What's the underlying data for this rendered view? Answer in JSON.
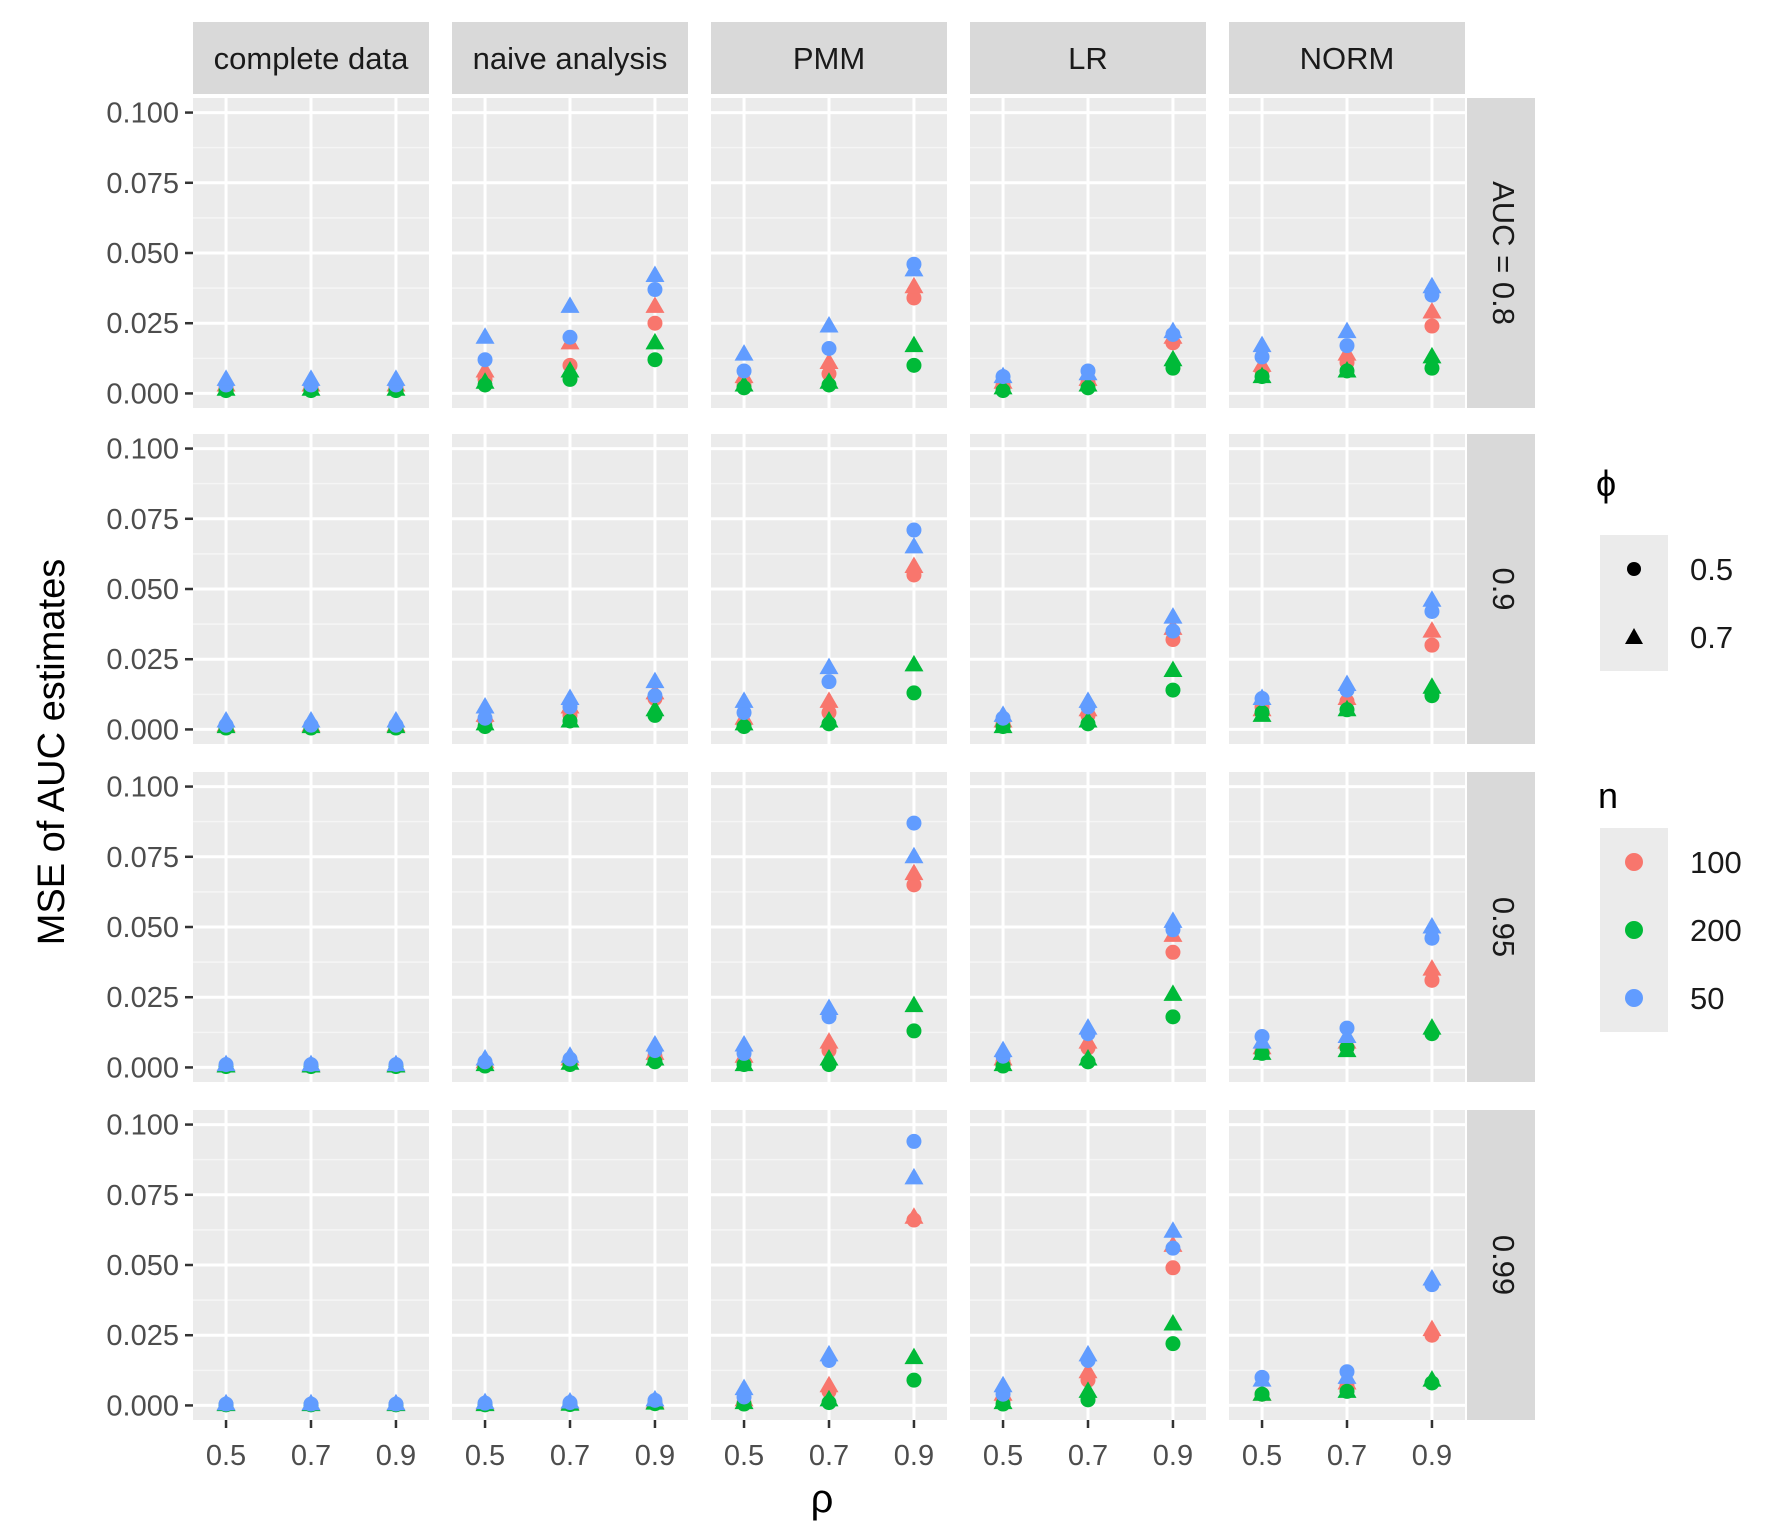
{
  "chart_data": {
    "type": "scatter",
    "layout": "facet-grid",
    "ylabel": "MSE of AUC estimates",
    "xlabel": "ρ",
    "x_ticks": [
      "0.5",
      "0.7",
      "0.9"
    ],
    "x_values": [
      0.5,
      0.7,
      0.9
    ],
    "ylim": [
      0,
      0.1
    ],
    "y_ticks": [
      "0.000",
      "0.025",
      "0.050",
      "0.075",
      "0.100"
    ],
    "y_tick_values": [
      0,
      0.025,
      0.05,
      0.075,
      0.1
    ],
    "column_facets": [
      "complete data",
      "naive analysis",
      "PMM",
      "LR",
      "NORM"
    ],
    "row_facets": [
      "AUC = 0.8",
      "0.9",
      "0.95",
      "0.99"
    ],
    "legend_phi": {
      "title": "ϕ",
      "items": [
        {
          "label": "0.5",
          "shape": "circle"
        },
        {
          "label": "0.7",
          "shape": "triangle"
        }
      ]
    },
    "legend_n": {
      "title": "n",
      "items": [
        {
          "label": "100",
          "color": "#F8766D"
        },
        {
          "label": "200",
          "color": "#00BA38"
        },
        {
          "label": "50",
          "color": "#619CFF"
        }
      ]
    },
    "series_order": [
      "100-0.5",
      "100-0.7",
      "200-0.5",
      "200-0.7",
      "50-0.5",
      "50-0.7"
    ],
    "series_meta": {
      "100-0.5": {
        "n": "100",
        "phi": "0.5"
      },
      "100-0.7": {
        "n": "100",
        "phi": "0.7"
      },
      "200-0.5": {
        "n": "200",
        "phi": "0.5"
      },
      "200-0.7": {
        "n": "200",
        "phi": "0.7"
      },
      "50-0.5": {
        "n": "50",
        "phi": "0.5"
      },
      "50-0.7": {
        "n": "50",
        "phi": "0.7"
      }
    },
    "panels": [
      [
        {
          "100-0.5": [
            0.002,
            0.002,
            0.002
          ],
          "100-0.7": [
            0.003,
            0.003,
            0.003
          ],
          "200-0.5": [
            0.001,
            0.001,
            0.001
          ],
          "200-0.7": [
            0.0015,
            0.0015,
            0.0015
          ],
          "50-0.5": [
            0.003,
            0.003,
            0.003
          ],
          "50-0.7": [
            0.005,
            0.005,
            0.005
          ]
        },
        {
          "100-0.5": [
            0.005,
            0.01,
            0.025
          ],
          "100-0.7": [
            0.008,
            0.018,
            0.031
          ],
          "200-0.5": [
            0.003,
            0.005,
            0.012
          ],
          "200-0.7": [
            0.004,
            0.008,
            0.018
          ],
          "50-0.5": [
            0.012,
            0.02,
            0.037
          ],
          "50-0.7": [
            0.02,
            0.031,
            0.042
          ]
        },
        {
          "100-0.5": [
            0.003,
            0.007,
            0.034
          ],
          "100-0.7": [
            0.006,
            0.011,
            0.038
          ],
          "200-0.5": [
            0.002,
            0.003,
            0.01
          ],
          "200-0.7": [
            0.003,
            0.004,
            0.017
          ],
          "50-0.5": [
            0.008,
            0.016,
            0.046
          ],
          "50-0.7": [
            0.014,
            0.024,
            0.044
          ]
        },
        {
          "100-0.5": [
            0.003,
            0.004,
            0.018
          ],
          "100-0.7": [
            0.004,
            0.005,
            0.02
          ],
          "200-0.5": [
            0.001,
            0.002,
            0.009
          ],
          "200-0.7": [
            0.002,
            0.003,
            0.012
          ],
          "50-0.5": [
            0.006,
            0.008,
            0.021
          ],
          "50-0.7": [
            0.006,
            0.007,
            0.022
          ]
        },
        {
          "100-0.5": [
            0.008,
            0.011,
            0.024
          ],
          "100-0.7": [
            0.01,
            0.014,
            0.029
          ],
          "200-0.5": [
            0.006,
            0.008,
            0.009
          ],
          "200-0.7": [
            0.006,
            0.008,
            0.013
          ],
          "50-0.5": [
            0.013,
            0.017,
            0.035
          ],
          "50-0.7": [
            0.017,
            0.022,
            0.038
          ]
        }
      ],
      [
        {
          "100-0.5": [
            0.001,
            0.001,
            0.001
          ],
          "100-0.7": [
            0.0015,
            0.0015,
            0.0015
          ],
          "200-0.5": [
            0.0005,
            0.0005,
            0.0005
          ],
          "200-0.7": [
            0.001,
            0.001,
            0.001
          ],
          "50-0.5": [
            0.0015,
            0.0015,
            0.0015
          ],
          "50-0.7": [
            0.003,
            0.003,
            0.003
          ]
        },
        {
          "100-0.5": [
            0.003,
            0.005,
            0.011
          ],
          "100-0.7": [
            0.005,
            0.008,
            0.013
          ],
          "200-0.5": [
            0.001,
            0.003,
            0.005
          ],
          "200-0.7": [
            0.002,
            0.003,
            0.007
          ],
          "50-0.5": [
            0.004,
            0.008,
            0.012
          ],
          "50-0.7": [
            0.008,
            0.011,
            0.017
          ]
        },
        {
          "100-0.5": [
            0.002,
            0.006,
            0.055
          ],
          "100-0.7": [
            0.004,
            0.01,
            0.058
          ],
          "200-0.5": [
            0.001,
            0.002,
            0.013
          ],
          "200-0.7": [
            0.002,
            0.003,
            0.023
          ],
          "50-0.5": [
            0.006,
            0.017,
            0.071
          ],
          "50-0.7": [
            0.01,
            0.022,
            0.065
          ]
        },
        {
          "100-0.5": [
            0.002,
            0.005,
            0.032
          ],
          "100-0.7": [
            0.003,
            0.007,
            0.036
          ],
          "200-0.5": [
            0.001,
            0.002,
            0.014
          ],
          "200-0.7": [
            0.001,
            0.003,
            0.021
          ],
          "50-0.5": [
            0.004,
            0.008,
            0.035
          ],
          "50-0.7": [
            0.005,
            0.01,
            0.04
          ]
        },
        {
          "100-0.5": [
            0.008,
            0.01,
            0.03
          ],
          "100-0.7": [
            0.007,
            0.011,
            0.035
          ],
          "200-0.5": [
            0.006,
            0.007,
            0.012
          ],
          "200-0.7": [
            0.005,
            0.007,
            0.015
          ],
          "50-0.5": [
            0.011,
            0.014,
            0.042
          ],
          "50-0.7": [
            0.011,
            0.016,
            0.046
          ]
        }
      ],
      [
        {
          "100-0.5": [
            0.0005,
            0.0005,
            0.0005
          ],
          "100-0.7": [
            0.0008,
            0.0008,
            0.0008
          ],
          "200-0.5": [
            0.0003,
            0.0003,
            0.0003
          ],
          "200-0.7": [
            0.0005,
            0.0005,
            0.0005
          ],
          "50-0.5": [
            0.001,
            0.001,
            0.001
          ],
          "50-0.7": [
            0.001,
            0.001,
            0.001
          ]
        },
        {
          "100-0.5": [
            0.001,
            0.002,
            0.004
          ],
          "100-0.7": [
            0.002,
            0.003,
            0.005
          ],
          "200-0.5": [
            0.0005,
            0.001,
            0.002
          ],
          "200-0.7": [
            0.001,
            0.0015,
            0.003
          ],
          "50-0.5": [
            0.002,
            0.003,
            0.006
          ],
          "50-0.7": [
            0.003,
            0.004,
            0.008
          ]
        },
        {
          "100-0.5": [
            0.002,
            0.006,
            0.065
          ],
          "100-0.7": [
            0.004,
            0.009,
            0.069
          ],
          "200-0.5": [
            0.001,
            0.001,
            0.013
          ],
          "200-0.7": [
            0.001,
            0.003,
            0.022
          ],
          "50-0.5": [
            0.005,
            0.018,
            0.087
          ],
          "50-0.7": [
            0.008,
            0.021,
            0.075
          ]
        },
        {
          "100-0.5": [
            0.002,
            0.007,
            0.041
          ],
          "100-0.7": [
            0.003,
            0.009,
            0.047
          ],
          "200-0.5": [
            0.0005,
            0.002,
            0.018
          ],
          "200-0.7": [
            0.001,
            0.003,
            0.026
          ],
          "50-0.5": [
            0.004,
            0.012,
            0.049
          ],
          "50-0.7": [
            0.006,
            0.014,
            0.052
          ]
        },
        {
          "100-0.5": [
            0.006,
            0.007,
            0.031
          ],
          "100-0.7": [
            0.007,
            0.009,
            0.035
          ],
          "200-0.5": [
            0.005,
            0.007,
            0.012
          ],
          "200-0.7": [
            0.005,
            0.006,
            0.014
          ],
          "50-0.5": [
            0.011,
            0.014,
            0.046
          ],
          "50-0.7": [
            0.009,
            0.011,
            0.05
          ]
        }
      ],
      [
        {
          "100-0.5": [
            0.0003,
            0.0003,
            0.0003
          ],
          "100-0.7": [
            0.0004,
            0.0004,
            0.0004
          ],
          "200-0.5": [
            0.0002,
            0.0002,
            0.0002
          ],
          "200-0.7": [
            0.0003,
            0.0003,
            0.0003
          ],
          "50-0.5": [
            0.0005,
            0.0005,
            0.0005
          ],
          "50-0.7": [
            0.0006,
            0.0006,
            0.0006
          ]
        },
        {
          "100-0.5": [
            0.0004,
            0.0005,
            0.001
          ],
          "100-0.7": [
            0.0006,
            0.0008,
            0.0012
          ],
          "200-0.5": [
            0.0002,
            0.0003,
            0.0006
          ],
          "200-0.7": [
            0.0003,
            0.0004,
            0.0008
          ],
          "50-0.5": [
            0.0008,
            0.001,
            0.0018
          ],
          "50-0.7": [
            0.001,
            0.0012,
            0.002
          ]
        },
        {
          "100-0.5": [
            0.001,
            0.005,
            0.066
          ],
          "100-0.7": [
            0.002,
            0.007,
            0.067
          ],
          "200-0.5": [
            0.0005,
            0.001,
            0.009
          ],
          "200-0.7": [
            0.001,
            0.002,
            0.017
          ],
          "50-0.5": [
            0.003,
            0.016,
            0.094
          ],
          "50-0.7": [
            0.006,
            0.018,
            0.081
          ]
        },
        {
          "100-0.5": [
            0.002,
            0.009,
            0.049
          ],
          "100-0.7": [
            0.004,
            0.012,
            0.057
          ],
          "200-0.5": [
            0.0005,
            0.002,
            0.022
          ],
          "200-0.7": [
            0.001,
            0.005,
            0.029
          ],
          "50-0.5": [
            0.004,
            0.016,
            0.056
          ],
          "50-0.7": [
            0.007,
            0.018,
            0.062
          ]
        },
        {
          "100-0.5": [
            0.004,
            0.007,
            0.025
          ],
          "100-0.7": [
            0.004,
            0.008,
            0.027
          ],
          "200-0.5": [
            0.004,
            0.005,
            0.008
          ],
          "200-0.7": [
            0.004,
            0.005,
            0.009
          ],
          "50-0.5": [
            0.01,
            0.012,
            0.043
          ],
          "50-0.7": [
            0.009,
            0.01,
            0.045
          ]
        }
      ]
    ]
  }
}
